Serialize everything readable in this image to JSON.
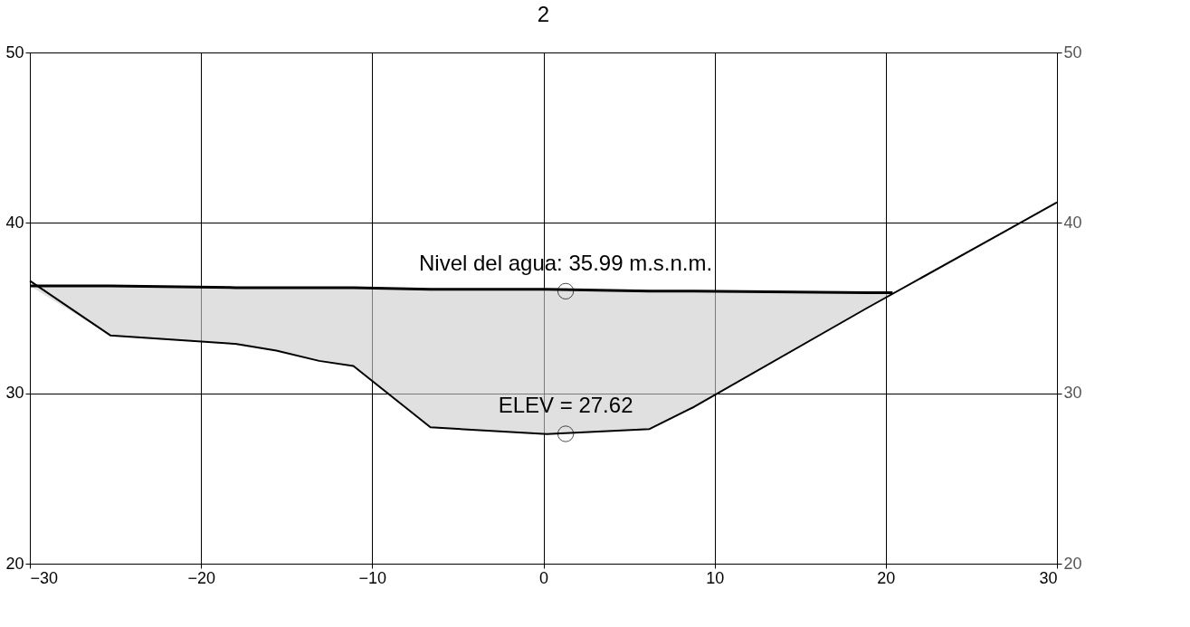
{
  "chart_data": {
    "type": "line",
    "title": "2",
    "xlim": [
      -30,
      30
    ],
    "xticks": [
      -30,
      -20,
      -10,
      0,
      10,
      20,
      30
    ],
    "ylim": [
      20,
      50
    ],
    "yticks": [
      20,
      30,
      40,
      50
    ],
    "y2lim": [
      20,
      50
    ],
    "y2ticks": [
      20,
      30,
      40,
      50
    ],
    "grid": true,
    "marker": "none",
    "line_style": "solid",
    "series": [
      {
        "color": "#000000",
        "x": [
          -30,
          -25.3,
          -18.0,
          -15.6,
          -13.1,
          -11.1,
          -6.6,
          0.2,
          6.2,
          8.8,
          18.9,
          30
        ],
        "values": [
          36.6,
          33.4,
          32.9,
          32.5,
          31.9,
          31.6,
          28.0,
          27.6,
          27.9,
          29.2,
          35.0,
          41.2
        ]
      },
      {
        "color": "#000000",
        "x": [
          -30,
          -25.3,
          -18.0,
          -15.6,
          -13.1,
          -11.1,
          -6.6,
          0.2,
          6.2,
          8.8,
          18.9,
          20.4
        ],
        "values": [
          36.3,
          36.3,
          36.2,
          36.2,
          36.2,
          36.2,
          36.1,
          36.1,
          36.0,
          36.0,
          35.9,
          35.9
        ],
        "upper": [
          36.3,
          36.3,
          36.2,
          36.2,
          36.2,
          36.2,
          36.1,
          36.1,
          36.0,
          36.0,
          35.9,
          35.9
        ],
        "lower": [
          36.3,
          33.4,
          32.9,
          32.5,
          31.9,
          31.6,
          28.0,
          27.6,
          27.9,
          29.2,
          35.0,
          35.9
        ]
      }
    ],
    "annotations": [
      {
        "text": "Nivel del agua: 35.99 m.s.n.m.",
        "x": 1.3,
        "y": 35.99
      },
      {
        "text": "ELEV = 27.62",
        "x": 1.3,
        "y": 27.62
      }
    ]
  }
}
